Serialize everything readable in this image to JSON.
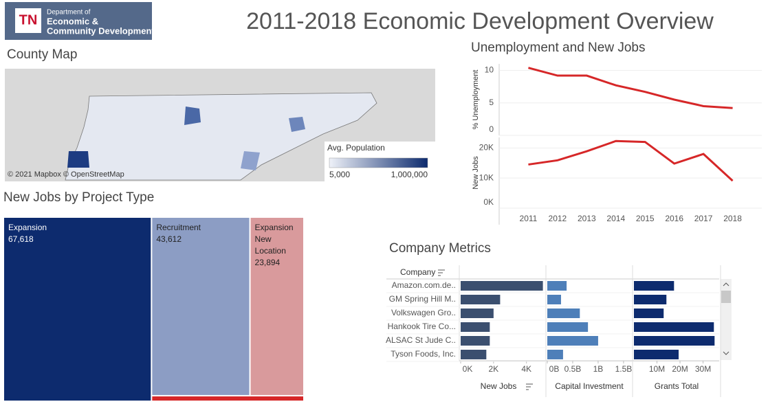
{
  "header": {
    "logo_mark": "TN",
    "logo_lines": [
      "Department of",
      "Economic &",
      "Community Development"
    ],
    "title": "2011-2018 Economic Development Overview"
  },
  "map": {
    "title": "County Map",
    "attribution": "© 2021 Mapbox © OpenStreetMap",
    "legend_title": "Avg. Population",
    "legend_min": "5,000",
    "legend_max": "1,000,000",
    "color_low": "#eef1f8",
    "color_high": "#0d2b6e"
  },
  "chart_data": [
    {
      "type": "line",
      "title": "Unemployment and New Jobs",
      "ylabel": "% Unemployment",
      "x": [
        2011,
        2012,
        2013,
        2014,
        2015,
        2016,
        2017,
        2018
      ],
      "xlim": [
        2010,
        2019
      ],
      "values": [
        10.4,
        9.2,
        9.2,
        7.7,
        6.7,
        5.5,
        4.5,
        4.2
      ],
      "color": "#d62728",
      "ylim": [
        0,
        11
      ],
      "yticks": [
        0,
        5,
        10
      ],
      "grid": true
    },
    {
      "type": "line",
      "ylabel": "New Jobs",
      "x": [
        2011,
        2012,
        2013,
        2014,
        2015,
        2016,
        2017,
        2018
      ],
      "xlim": [
        2010,
        2019
      ],
      "xticks": [
        2011,
        2012,
        2013,
        2014,
        2015,
        2016,
        2017,
        2018
      ],
      "values": [
        14500,
        15900,
        18900,
        22300,
        22000,
        14800,
        18000,
        9100
      ],
      "color": "#d62728",
      "ylim": [
        0,
        23500
      ],
      "yticks": [
        {
          "value": 0,
          "label": "0K"
        },
        {
          "value": 10000,
          "label": "10K"
        },
        {
          "value": 20000,
          "label": "20K"
        }
      ],
      "grid": true
    },
    {
      "type": "treemap",
      "title": "New Jobs by Project Type",
      "categories": [
        "Expansion",
        "Recruitment",
        "Expansion New Location",
        null
      ],
      "values": [
        67618,
        43612,
        23894,
        2100
      ],
      "value_labels": [
        "67,618",
        "43,612",
        "23,894",
        null
      ],
      "colors": [
        "#0d2b6e",
        "#8c9dc4",
        "#d99a9c",
        "#d62728"
      ]
    },
    {
      "type": "bar",
      "title": "Company Metrics",
      "category_header": "Company",
      "xlabel": "New Jobs",
      "categories": [
        "Amazon.com.de..",
        "GM Spring Hill M..",
        "Volkswagen Gro..",
        "Hankook Tire Co...",
        "ALSAC St Jude C..",
        "Tyson Foods, Inc."
      ],
      "values": [
        5000,
        2400,
        2000,
        1770,
        1770,
        1560
      ],
      "color": "#3b4f6f",
      "xlim": [
        0,
        5100
      ],
      "xticks": [
        {
          "value": 0,
          "label": "0K"
        },
        {
          "value": 2000,
          "label": "2K"
        },
        {
          "value": 4000,
          "label": "4K"
        }
      ]
    },
    {
      "type": "bar",
      "xlabel": "Capital Investment",
      "values": [
        380000000,
        270000000,
        640000000,
        800000000,
        1000000000,
        310000000
      ],
      "color": "#4e7fb9",
      "xlim": [
        0,
        1650000000
      ],
      "xticks": [
        {
          "value": 0,
          "label": "0B"
        },
        {
          "value": 500000000,
          "label": "0.5B"
        },
        {
          "value": 1000000000,
          "label": "1B"
        },
        {
          "value": 1500000000,
          "label": "1.5B"
        }
      ]
    },
    {
      "type": "bar",
      "xlabel": "Grants Total",
      "values": [
        17400000,
        14100000,
        12900000,
        34700000,
        35000000,
        19400000
      ],
      "color": "#0d2b6e",
      "xlim": [
        0,
        37000000
      ],
      "xticks": [
        {
          "value": 10000000,
          "label": "10M"
        },
        {
          "value": 20000000,
          "label": "20M"
        },
        {
          "value": 30000000,
          "label": "30M"
        }
      ]
    }
  ]
}
